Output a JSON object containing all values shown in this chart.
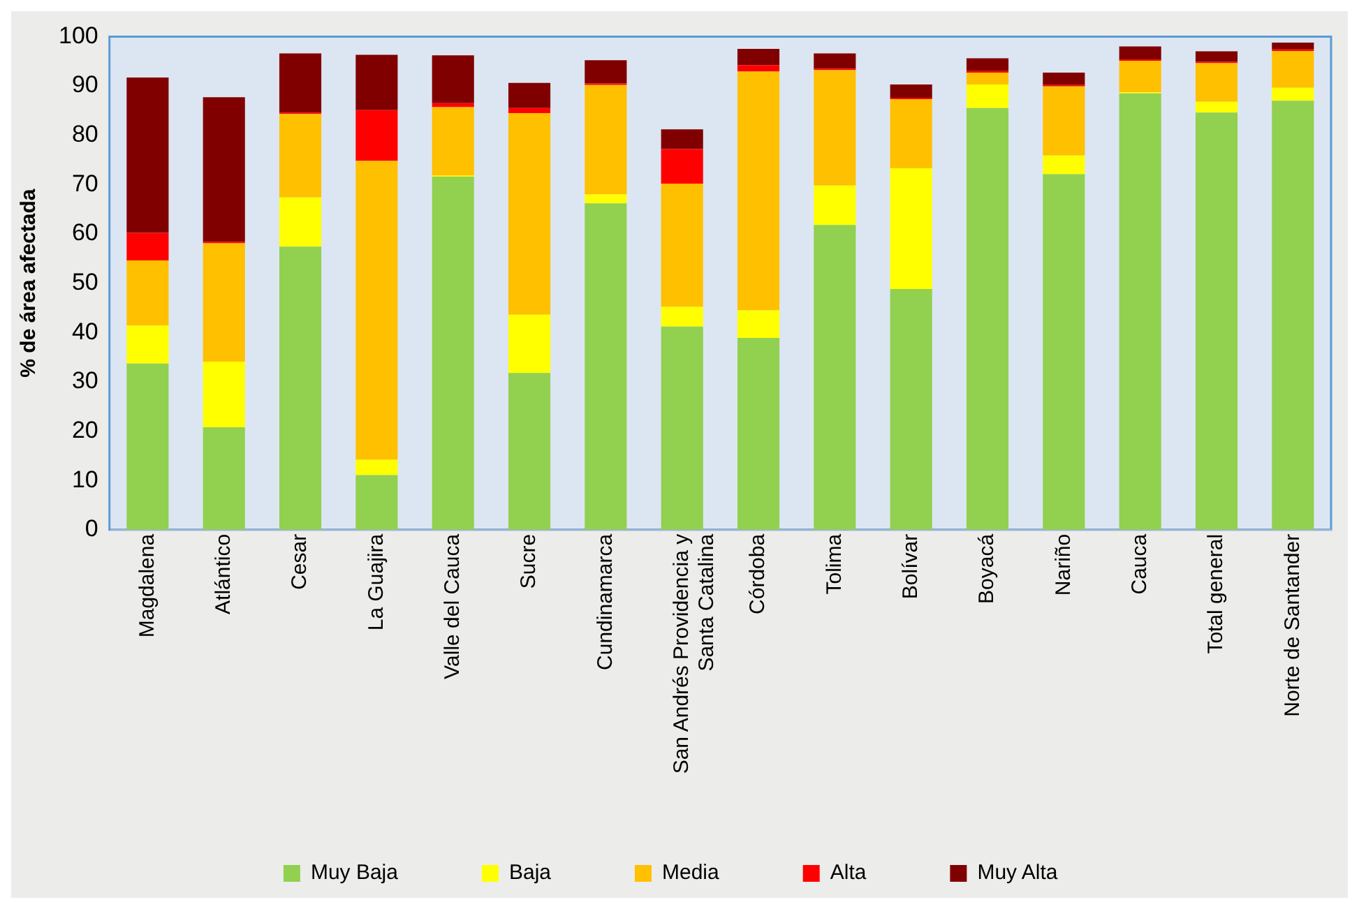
{
  "chart_data": {
    "type": "bar",
    "stacked": true,
    "ylabel": "% de área afectada",
    "ylim": [
      0,
      100
    ],
    "yticks": [
      0,
      10,
      20,
      30,
      40,
      50,
      60,
      70,
      80,
      90,
      100
    ],
    "grid": false,
    "legend": "bottom",
    "categories": [
      "Magdalena",
      "Atlántico",
      "Cesar",
      "La Guajira",
      "Valle del Cauca",
      "Sucre",
      "Cundinamarca",
      "San Andrés Providencia y Santa Catalina",
      "Córdoba",
      "Tolima",
      "Bolívar",
      "Boyacá",
      "Nariño",
      "Cauca",
      "Total general",
      "Norte de Santander"
    ],
    "series": [
      {
        "name": "Muy Baja",
        "color": "#92d050",
        "values": [
          33.7,
          20.8,
          57.4,
          11.1,
          71.6,
          31.8,
          66.2,
          41.2,
          38.9,
          61.8,
          48.8,
          85.5,
          72.1,
          88.5,
          84.6,
          87.0
        ]
      },
      {
        "name": "Baja",
        "color": "#ffff00",
        "values": [
          7.7,
          13.3,
          10.0,
          3.1,
          0.2,
          11.8,
          1.8,
          4.0,
          5.6,
          8.0,
          24.5,
          4.8,
          3.8,
          0.2,
          2.2,
          2.6
        ]
      },
      {
        "name": "Media",
        "color": "#ffc000",
        "values": [
          13.2,
          24.0,
          16.9,
          60.6,
          13.9,
          40.9,
          22.2,
          25.0,
          48.4,
          23.4,
          14.0,
          2.4,
          14.0,
          6.4,
          7.8,
          7.5
        ]
      },
      {
        "name": "Alta",
        "color": "#ff0000",
        "values": [
          5.6,
          0.3,
          0.3,
          10.3,
          0.8,
          1.0,
          0.3,
          7.0,
          1.3,
          0.3,
          0.3,
          0.3,
          0.3,
          0.3,
          0.3,
          0.3
        ]
      },
      {
        "name": "Muy Alta",
        "color": "#800000",
        "values": [
          31.5,
          29.3,
          12.0,
          11.2,
          9.7,
          5.1,
          4.7,
          4.0,
          3.3,
          3.1,
          2.7,
          2.6,
          2.5,
          2.6,
          2.1,
          1.4
        ]
      }
    ]
  }
}
